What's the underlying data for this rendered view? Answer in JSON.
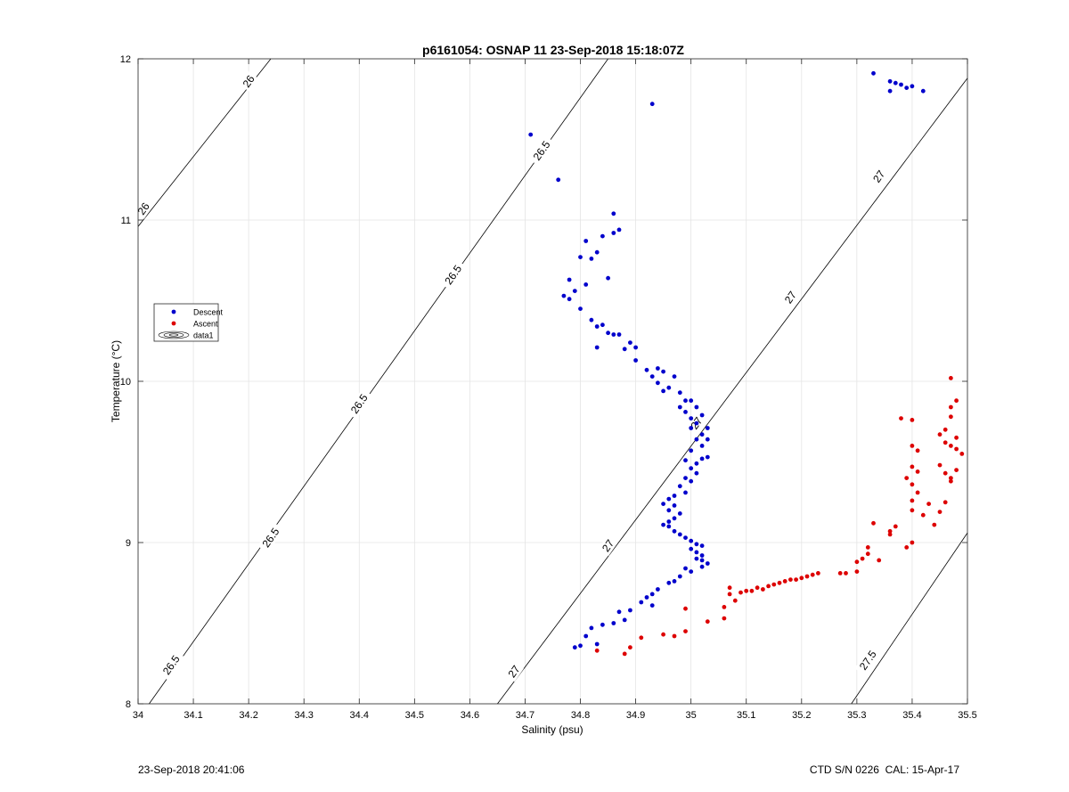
{
  "footer": {
    "left": "23-Sep-2018 20:41:06",
    "right": "CTD S/N 0226  CAL: 15-Apr-17"
  },
  "chart_data": {
    "type": "scatter",
    "title": "p6161054: OSNAP 11 23-Sep-2018 15:18:07Z",
    "xlabel": "Salinity (psu)",
    "ylabel": "Temperature (°C)",
    "xlim": [
      34,
      35.5
    ],
    "ylim": [
      8,
      12
    ],
    "xticks": [
      "34",
      "34.1",
      "34.2",
      "34.3",
      "34.4",
      "34.5",
      "34.6",
      "34.7",
      "34.8",
      "34.9",
      "35",
      "35.1",
      "35.2",
      "35.3",
      "35.4",
      "35.5"
    ],
    "yticks": [
      "8",
      "9",
      "10",
      "11",
      "12"
    ],
    "grid": true,
    "legend_position": "left",
    "legend": [
      "Descent",
      "Ascent",
      "data1"
    ],
    "colors": {
      "descent": "#0000cc",
      "ascent": "#dd0000",
      "contour": "#000000",
      "grid": "#e4e4e4"
    },
    "series": [
      {
        "name": "Descent",
        "points": [
          [
            34.71,
            11.53
          ],
          [
            34.76,
            11.25
          ],
          [
            34.93,
            11.72
          ],
          [
            34.86,
            11.04
          ],
          [
            34.87,
            10.94
          ],
          [
            34.86,
            10.92
          ],
          [
            34.84,
            10.9
          ],
          [
            34.81,
            10.87
          ],
          [
            34.83,
            10.8
          ],
          [
            34.8,
            10.77
          ],
          [
            34.82,
            10.76
          ],
          [
            34.85,
            10.64
          ],
          [
            34.78,
            10.63
          ],
          [
            34.81,
            10.6
          ],
          [
            34.79,
            10.56
          ],
          [
            34.77,
            10.53
          ],
          [
            34.78,
            10.51
          ],
          [
            34.8,
            10.45
          ],
          [
            34.82,
            10.38
          ],
          [
            34.83,
            10.34
          ],
          [
            34.84,
            10.35
          ],
          [
            34.85,
            10.3
          ],
          [
            34.86,
            10.29
          ],
          [
            34.87,
            10.29
          ],
          [
            34.89,
            10.24
          ],
          [
            34.88,
            10.2
          ],
          [
            34.9,
            10.21
          ],
          [
            34.83,
            10.21
          ],
          [
            34.9,
            10.13
          ],
          [
            34.92,
            10.07
          ],
          [
            34.94,
            10.08
          ],
          [
            34.95,
            10.06
          ],
          [
            34.93,
            10.03
          ],
          [
            34.97,
            10.03
          ],
          [
            34.94,
            9.99
          ],
          [
            34.96,
            9.96
          ],
          [
            34.95,
            9.94
          ],
          [
            34.98,
            9.93
          ],
          [
            34.99,
            9.88
          ],
          [
            35.0,
            9.88
          ],
          [
            34.98,
            9.84
          ],
          [
            35.01,
            9.84
          ],
          [
            34.99,
            9.81
          ],
          [
            35.0,
            9.77
          ],
          [
            35.02,
            9.79
          ],
          [
            35.01,
            9.74
          ],
          [
            35.0,
            9.71
          ],
          [
            35.03,
            9.71
          ],
          [
            35.02,
            9.67
          ],
          [
            35.01,
            9.64
          ],
          [
            35.03,
            9.64
          ],
          [
            35.02,
            9.6
          ],
          [
            35.0,
            9.57
          ],
          [
            35.03,
            9.53
          ],
          [
            35.02,
            9.52
          ],
          [
            35.01,
            9.49
          ],
          [
            34.99,
            9.51
          ],
          [
            35.0,
            9.46
          ],
          [
            35.01,
            9.43
          ],
          [
            34.99,
            9.4
          ],
          [
            35.0,
            9.38
          ],
          [
            34.98,
            9.35
          ],
          [
            34.99,
            9.31
          ],
          [
            34.97,
            9.29
          ],
          [
            34.96,
            9.27
          ],
          [
            34.95,
            9.24
          ],
          [
            34.97,
            9.23
          ],
          [
            34.96,
            9.2
          ],
          [
            34.98,
            9.18
          ],
          [
            34.97,
            9.15
          ],
          [
            34.96,
            9.13
          ],
          [
            34.95,
            9.11
          ],
          [
            34.96,
            9.1
          ],
          [
            34.97,
            9.07
          ],
          [
            34.98,
            9.05
          ],
          [
            34.99,
            9.03
          ],
          [
            35.0,
            9.01
          ],
          [
            35.01,
            8.99
          ],
          [
            35.02,
            8.98
          ],
          [
            35.0,
            8.96
          ],
          [
            35.01,
            8.94
          ],
          [
            35.02,
            8.92
          ],
          [
            35.01,
            8.9
          ],
          [
            35.02,
            8.89
          ],
          [
            35.03,
            8.87
          ],
          [
            35.02,
            8.85
          ],
          [
            34.99,
            8.84
          ],
          [
            35.0,
            8.82
          ],
          [
            34.98,
            8.79
          ],
          [
            34.97,
            8.76
          ],
          [
            34.96,
            8.75
          ],
          [
            34.94,
            8.71
          ],
          [
            34.93,
            8.68
          ],
          [
            34.92,
            8.66
          ],
          [
            34.91,
            8.63
          ],
          [
            34.93,
            8.61
          ],
          [
            34.89,
            8.58
          ],
          [
            34.87,
            8.57
          ],
          [
            34.88,
            8.52
          ],
          [
            34.86,
            8.5
          ],
          [
            34.84,
            8.49
          ],
          [
            34.82,
            8.47
          ],
          [
            34.81,
            8.42
          ],
          [
            34.8,
            8.36
          ],
          [
            34.83,
            8.37
          ],
          [
            34.79,
            8.35
          ],
          [
            35.33,
            11.91
          ],
          [
            35.36,
            11.86
          ],
          [
            35.37,
            11.85
          ],
          [
            35.38,
            11.84
          ],
          [
            35.39,
            11.82
          ],
          [
            35.4,
            11.83
          ],
          [
            35.42,
            11.8
          ],
          [
            35.36,
            11.8
          ]
        ]
      },
      {
        "name": "Ascent",
        "points": [
          [
            34.83,
            8.33
          ],
          [
            34.88,
            8.31
          ],
          [
            34.89,
            8.35
          ],
          [
            34.91,
            8.41
          ],
          [
            34.95,
            8.43
          ],
          [
            34.97,
            8.42
          ],
          [
            34.99,
            8.45
          ],
          [
            35.03,
            8.51
          ],
          [
            34.99,
            8.59
          ],
          [
            35.06,
            8.53
          ],
          [
            35.06,
            8.6
          ],
          [
            35.08,
            8.64
          ],
          [
            35.07,
            8.68
          ],
          [
            35.09,
            8.69
          ],
          [
            35.1,
            8.7
          ],
          [
            35.11,
            8.7
          ],
          [
            35.12,
            8.72
          ],
          [
            35.13,
            8.71
          ],
          [
            35.14,
            8.73
          ],
          [
            35.15,
            8.74
          ],
          [
            35.16,
            8.75
          ],
          [
            35.17,
            8.76
          ],
          [
            35.18,
            8.77
          ],
          [
            35.19,
            8.77
          ],
          [
            35.2,
            8.78
          ],
          [
            35.21,
            8.79
          ],
          [
            35.22,
            8.8
          ],
          [
            35.23,
            8.81
          ],
          [
            35.07,
            8.72
          ],
          [
            35.27,
            8.81
          ],
          [
            35.28,
            8.81
          ],
          [
            35.3,
            8.82
          ],
          [
            35.3,
            8.88
          ],
          [
            35.31,
            8.9
          ],
          [
            35.32,
            8.93
          ],
          [
            35.34,
            8.89
          ],
          [
            35.32,
            8.97
          ],
          [
            35.33,
            9.12
          ],
          [
            35.36,
            9.07
          ],
          [
            35.37,
            9.1
          ],
          [
            35.36,
            9.05
          ],
          [
            35.39,
            8.97
          ],
          [
            35.4,
            9.0
          ],
          [
            35.4,
            9.2
          ],
          [
            35.4,
            9.26
          ],
          [
            35.41,
            9.31
          ],
          [
            35.42,
            9.17
          ],
          [
            35.43,
            9.24
          ],
          [
            35.44,
            9.11
          ],
          [
            35.45,
            9.19
          ],
          [
            35.46,
            9.25
          ],
          [
            35.4,
            9.36
          ],
          [
            35.39,
            9.4
          ],
          [
            35.41,
            9.44
          ],
          [
            35.4,
            9.47
          ],
          [
            35.41,
            9.57
          ],
          [
            35.4,
            9.6
          ],
          [
            35.45,
            9.48
          ],
          [
            35.47,
            9.38
          ],
          [
            35.47,
            9.4
          ],
          [
            35.46,
            9.43
          ],
          [
            35.48,
            9.45
          ],
          [
            35.48,
            9.58
          ],
          [
            35.49,
            9.55
          ],
          [
            35.47,
            9.6
          ],
          [
            35.46,
            9.62
          ],
          [
            35.45,
            9.67
          ],
          [
            35.46,
            9.7
          ],
          [
            35.48,
            9.65
          ],
          [
            35.38,
            9.77
          ],
          [
            35.4,
            9.76
          ],
          [
            35.47,
            9.78
          ],
          [
            35.47,
            9.84
          ],
          [
            35.48,
            9.88
          ],
          [
            35.47,
            10.02
          ]
        ]
      }
    ],
    "isopycnals": [
      {
        "sigma": 26,
        "label": "26",
        "points": [
          [
            34.0,
            10.96
          ],
          [
            34.24,
            12.0
          ]
        ]
      },
      {
        "sigma": 26.5,
        "label": "26.5",
        "points": [
          [
            34.02,
            8.0
          ],
          [
            34.85,
            12.0
          ]
        ]
      },
      {
        "sigma": 27,
        "label": "27",
        "points": [
          [
            34.65,
            8.0
          ],
          [
            35.5,
            11.88
          ]
        ]
      },
      {
        "sigma": 27.5,
        "label": "27.5",
        "points": [
          [
            35.29,
            8.0
          ],
          [
            35.5,
            9.06
          ]
        ]
      }
    ],
    "contour_labels": [
      {
        "text": "26",
        "x": 34.01,
        "y": 11.07,
        "angle": -55
      },
      {
        "text": "26",
        "x": 34.2,
        "y": 11.86,
        "angle": -55
      },
      {
        "text": "26.5",
        "x": 34.06,
        "y": 8.24,
        "angle": -55
      },
      {
        "text": "26.5",
        "x": 34.24,
        "y": 9.03,
        "angle": -55
      },
      {
        "text": "26.5",
        "x": 34.4,
        "y": 9.86,
        "angle": -55
      },
      {
        "text": "26.5",
        "x": 34.57,
        "y": 10.66,
        "angle": -55
      },
      {
        "text": "26.5",
        "x": 34.73,
        "y": 11.43,
        "angle": -55
      },
      {
        "text": "27",
        "x": 34.68,
        "y": 8.2,
        "angle": -55
      },
      {
        "text": "27",
        "x": 34.85,
        "y": 8.98,
        "angle": -55
      },
      {
        "text": "27",
        "x": 35.01,
        "y": 9.74,
        "angle": -55
      },
      {
        "text": "27",
        "x": 35.18,
        "y": 10.52,
        "angle": -55
      },
      {
        "text": "27",
        "x": 35.34,
        "y": 11.27,
        "angle": -55
      },
      {
        "text": "27.5",
        "x": 35.32,
        "y": 8.27,
        "angle": -55
      }
    ]
  }
}
